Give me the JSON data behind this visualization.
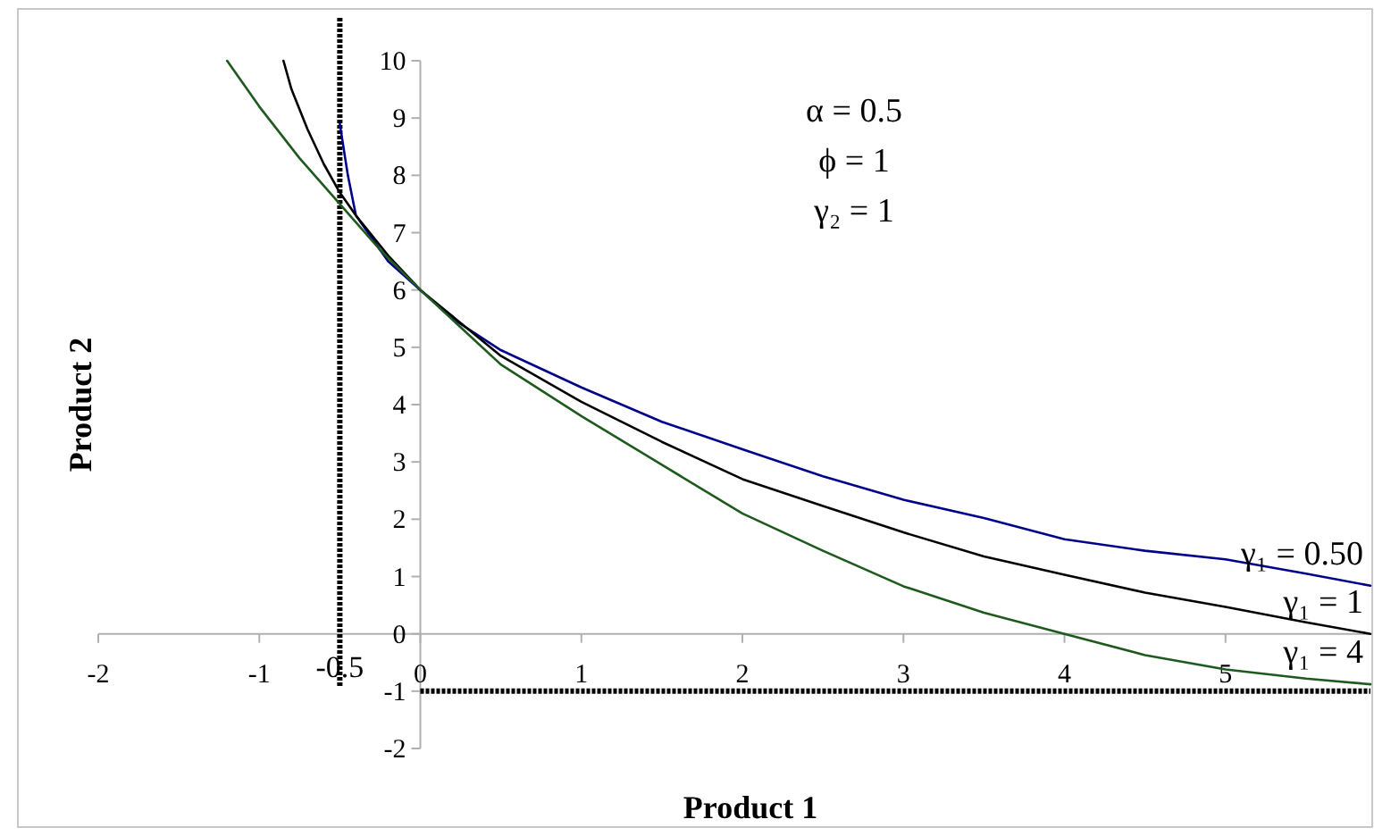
{
  "chart_data": {
    "type": "line",
    "xlabel": "Product 1",
    "ylabel": "Product 2",
    "xlim": [
      -2,
      5.9
    ],
    "ylim": [
      -2,
      10
    ],
    "xticks": [
      -2,
      -1,
      0,
      1,
      2,
      3,
      4,
      5
    ],
    "yticks": [
      -2,
      -1,
      0,
      1,
      2,
      3,
      4,
      5,
      6,
      7,
      8,
      9,
      10
    ],
    "grid": false,
    "marker": "none",
    "line_style": "solid",
    "annotations": [
      "α = 0.5",
      "ϕ = 1",
      "γ₂ = 1"
    ],
    "ref_lines": [
      {
        "axis": "x",
        "value": -0.5,
        "label": "-0.5",
        "line_style": "dotted",
        "color": "#000000"
      },
      {
        "axis": "y",
        "value": -1,
        "line_style": "dotted",
        "color": "#000000"
      }
    ],
    "series": [
      {
        "name": "γ₁ = 0.50",
        "color": "#00008b",
        "x": [
          -0.5,
          -0.45,
          -0.4,
          -0.3,
          -0.2,
          0,
          0.2,
          0.5,
          1,
          1.5,
          2,
          2.5,
          3,
          3.5,
          4,
          4.5,
          5,
          5.5,
          5.9
        ],
        "values": [
          8.9,
          8.0,
          7.3,
          6.9,
          6.5,
          6,
          5.5,
          4.95,
          4.3,
          3.7,
          3.22,
          2.75,
          2.34,
          2.02,
          1.65,
          1.45,
          1.3,
          1.05,
          0.84
        ]
      },
      {
        "name": "γ₁ = 1",
        "color": "#000000",
        "x": [
          -0.85,
          -0.8,
          -0.7,
          -0.6,
          -0.5,
          -0.4,
          -0.2,
          0,
          0.5,
          1,
          1.5,
          2,
          2.5,
          3,
          3.5,
          4,
          4.5,
          5,
          5.5,
          5.9
        ],
        "values": [
          10,
          9.5,
          8.8,
          8.2,
          7.7,
          7.3,
          6.6,
          6,
          4.85,
          4.05,
          3.35,
          2.7,
          2.23,
          1.77,
          1.35,
          1.03,
          0.72,
          0.47,
          0.2,
          0
        ]
      },
      {
        "name": "γ₁ = 4",
        "color": "#1e5a1e",
        "x": [
          -1.2,
          -1,
          -0.75,
          -0.5,
          -0.25,
          0,
          0.5,
          1,
          1.5,
          2,
          2.5,
          3,
          3.5,
          4,
          4.5,
          5,
          5.5,
          5.9
        ],
        "values": [
          10,
          9.2,
          8.3,
          7.5,
          6.7,
          6,
          4.7,
          3.8,
          2.95,
          2.1,
          1.45,
          0.83,
          0.37,
          0,
          -0.37,
          -0.62,
          -0.78,
          -0.88
        ]
      }
    ]
  }
}
